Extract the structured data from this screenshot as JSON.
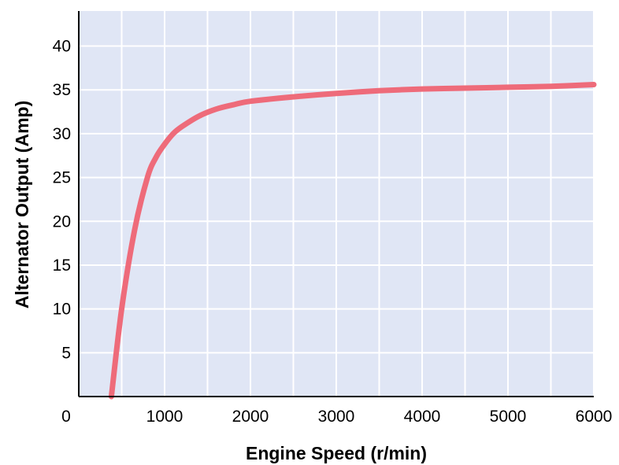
{
  "chart_data": {
    "type": "line",
    "title": "",
    "xlabel": "Engine Speed (r/min)",
    "ylabel": "Alternator Output (Amp)",
    "xlim": [
      0,
      6000
    ],
    "ylim": [
      0,
      44
    ],
    "x_ticks": [
      0,
      1000,
      2000,
      3000,
      4000,
      5000,
      6000
    ],
    "y_ticks": [
      5,
      10,
      15,
      20,
      25,
      30,
      35,
      40
    ],
    "x_tick_labels": [
      "0",
      "1000",
      "2000",
      "3000",
      "4000",
      "5000",
      "6000"
    ],
    "y_tick_labels": [
      "5",
      "10",
      "15",
      "20",
      "25",
      "30",
      "35",
      "40"
    ],
    "grid": true,
    "legend": "none",
    "colors": {
      "background": "#e0e6f5",
      "grid": "#ffffff",
      "line": "#ee6b7a",
      "axis": "#000000"
    },
    "series": [
      {
        "x": [
          380,
          500,
          650,
          800,
          900,
          1000,
          1100,
          1200,
          1400,
          1600,
          1800,
          2000,
          2500,
          3000,
          3500,
          4000,
          4500,
          5000,
          5500,
          6000
        ],
        "y": [
          0,
          10,
          19,
          25,
          27.3,
          28.8,
          30,
          30.8,
          32,
          32.8,
          33.3,
          33.7,
          34.2,
          34.6,
          34.9,
          35.1,
          35.2,
          35.3,
          35.4,
          35.6
        ]
      }
    ]
  }
}
